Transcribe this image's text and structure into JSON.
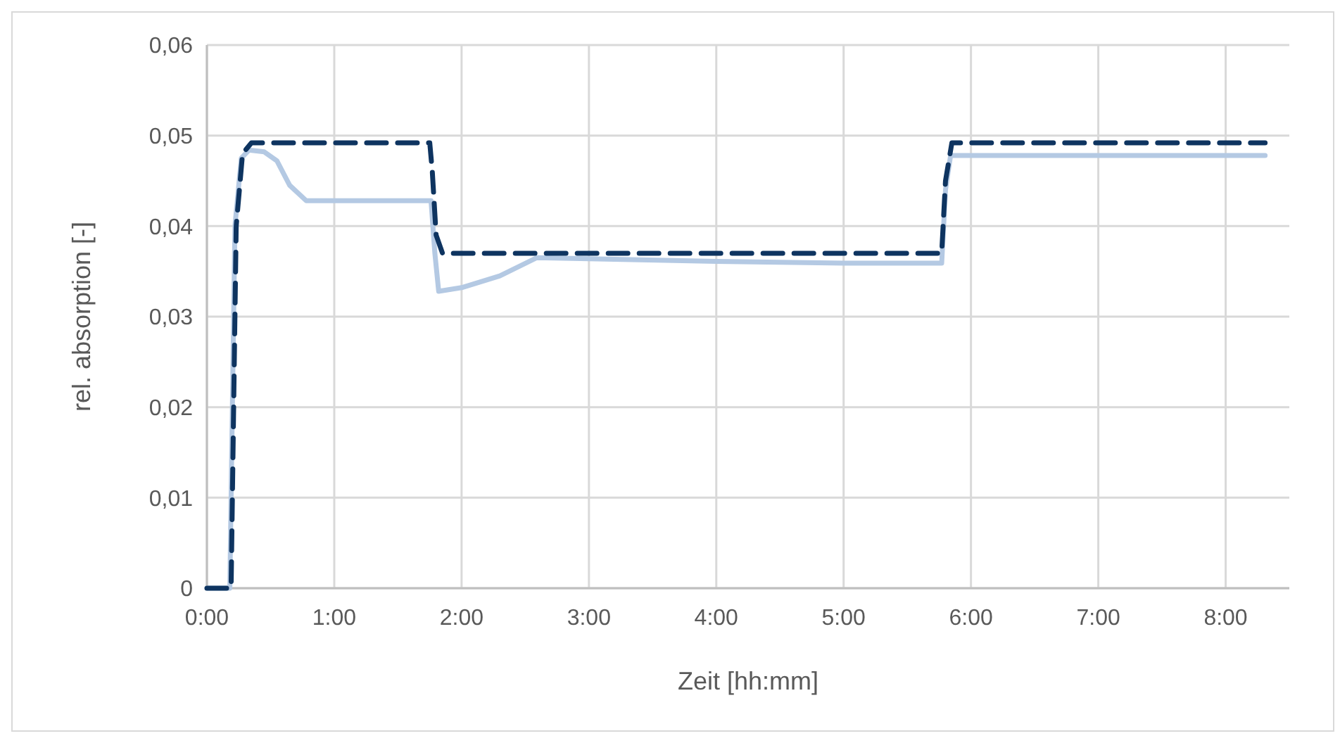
{
  "chart_data": {
    "type": "line",
    "xlabel": "Zeit [hh:mm]",
    "ylabel": "rel. absorption [-]",
    "xlim": [
      0,
      8.5
    ],
    "ylim": [
      0,
      0.06
    ],
    "xticks": [
      {
        "value": 0,
        "label": "0:00"
      },
      {
        "value": 1,
        "label": "1:00"
      },
      {
        "value": 2,
        "label": "2:00"
      },
      {
        "value": 3,
        "label": "3:00"
      },
      {
        "value": 4,
        "label": "4:00"
      },
      {
        "value": 5,
        "label": "5:00"
      },
      {
        "value": 6,
        "label": "6:00"
      },
      {
        "value": 7,
        "label": "7:00"
      },
      {
        "value": 8,
        "label": "8:00"
      }
    ],
    "yticks": [
      {
        "value": 0,
        "label": "0"
      },
      {
        "value": 0.01,
        "label": "0,01"
      },
      {
        "value": 0.02,
        "label": "0,02"
      },
      {
        "value": 0.03,
        "label": "0,03"
      },
      {
        "value": 0.04,
        "label": "0,04"
      },
      {
        "value": 0.05,
        "label": "0,05"
      },
      {
        "value": 0.06,
        "label": "0,06"
      }
    ],
    "grid": true,
    "series": [
      {
        "color": "#b4c9e3",
        "line_style": "solid",
        "x": [
          0,
          0.18,
          0.22,
          0.27,
          0.33,
          0.45,
          0.55,
          0.65,
          0.78,
          1.2,
          1.76,
          1.79,
          1.82,
          2.0,
          2.3,
          2.59,
          3.0,
          4.0,
          5.0,
          5.77,
          5.8,
          5.84,
          7.0,
          8.31
        ],
        "values": [
          0,
          0,
          0.04,
          0.0475,
          0.0484,
          0.0482,
          0.0472,
          0.0445,
          0.0428,
          0.0428,
          0.0428,
          0.037,
          0.0328,
          0.0332,
          0.0345,
          0.0365,
          0.0364,
          0.0361,
          0.0359,
          0.0359,
          0.044,
          0.0478,
          0.0478,
          0.0478
        ]
      },
      {
        "color": "#0e3460",
        "line_style": "dashed",
        "x": [
          0,
          0.19,
          0.23,
          0.28,
          0.35,
          1.75,
          1.77,
          1.8,
          1.85,
          5.77,
          5.8,
          5.85,
          8.31
        ],
        "values": [
          0,
          0,
          0.04,
          0.048,
          0.0492,
          0.0492,
          0.046,
          0.039,
          0.037,
          0.037,
          0.045,
          0.0492,
          0.0492
        ]
      }
    ]
  }
}
